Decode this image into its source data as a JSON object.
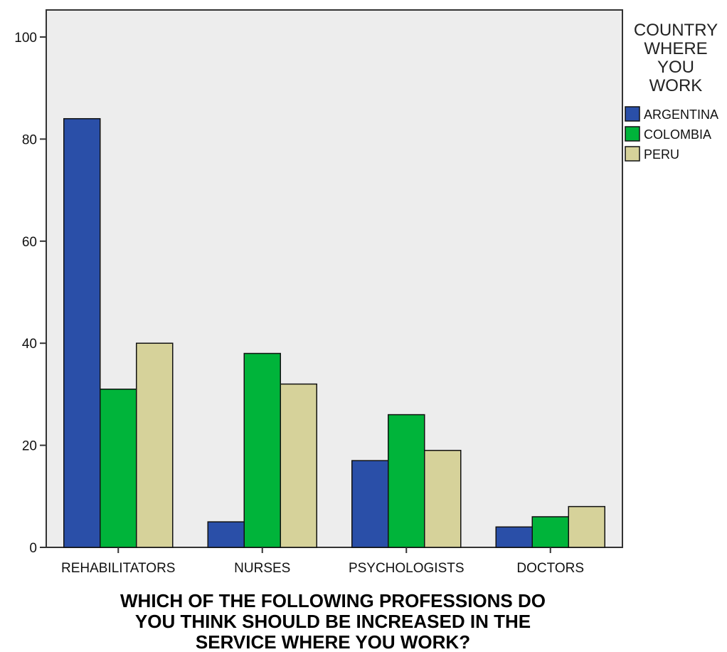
{
  "chart_data": {
    "type": "bar",
    "categories": [
      "REHABILITATORS",
      "NURSES",
      "PSYCHOLOGISTS",
      "DOCTORS"
    ],
    "series": [
      {
        "name": "ARGENTINA",
        "values": [
          84,
          5,
          17,
          4
        ],
        "color": "#2a4fa8"
      },
      {
        "name": "COLOMBIA",
        "values": [
          31,
          38,
          26,
          6
        ],
        "color": "#00b43a"
      },
      {
        "name": "PERU",
        "values": [
          40,
          32,
          19,
          8
        ],
        "color": "#d6d29a"
      }
    ],
    "title": "",
    "xlabel_lines": [
      "WHICH OF THE FOLLOWING PROFESSIONS DO",
      "YOU THINK SHOULD BE INCREASED IN THE",
      "SERVICE WHERE YOU WORK?"
    ],
    "ylabel": "",
    "ylim": [
      0,
      100
    ],
    "yticks": [
      0,
      20,
      40,
      60,
      80,
      100
    ],
    "legend": {
      "title_lines": [
        "COUNTRY",
        "WHERE",
        "YOU",
        "WORK"
      ],
      "position": "right"
    },
    "plot_background": "#ededed",
    "grid": false
  }
}
